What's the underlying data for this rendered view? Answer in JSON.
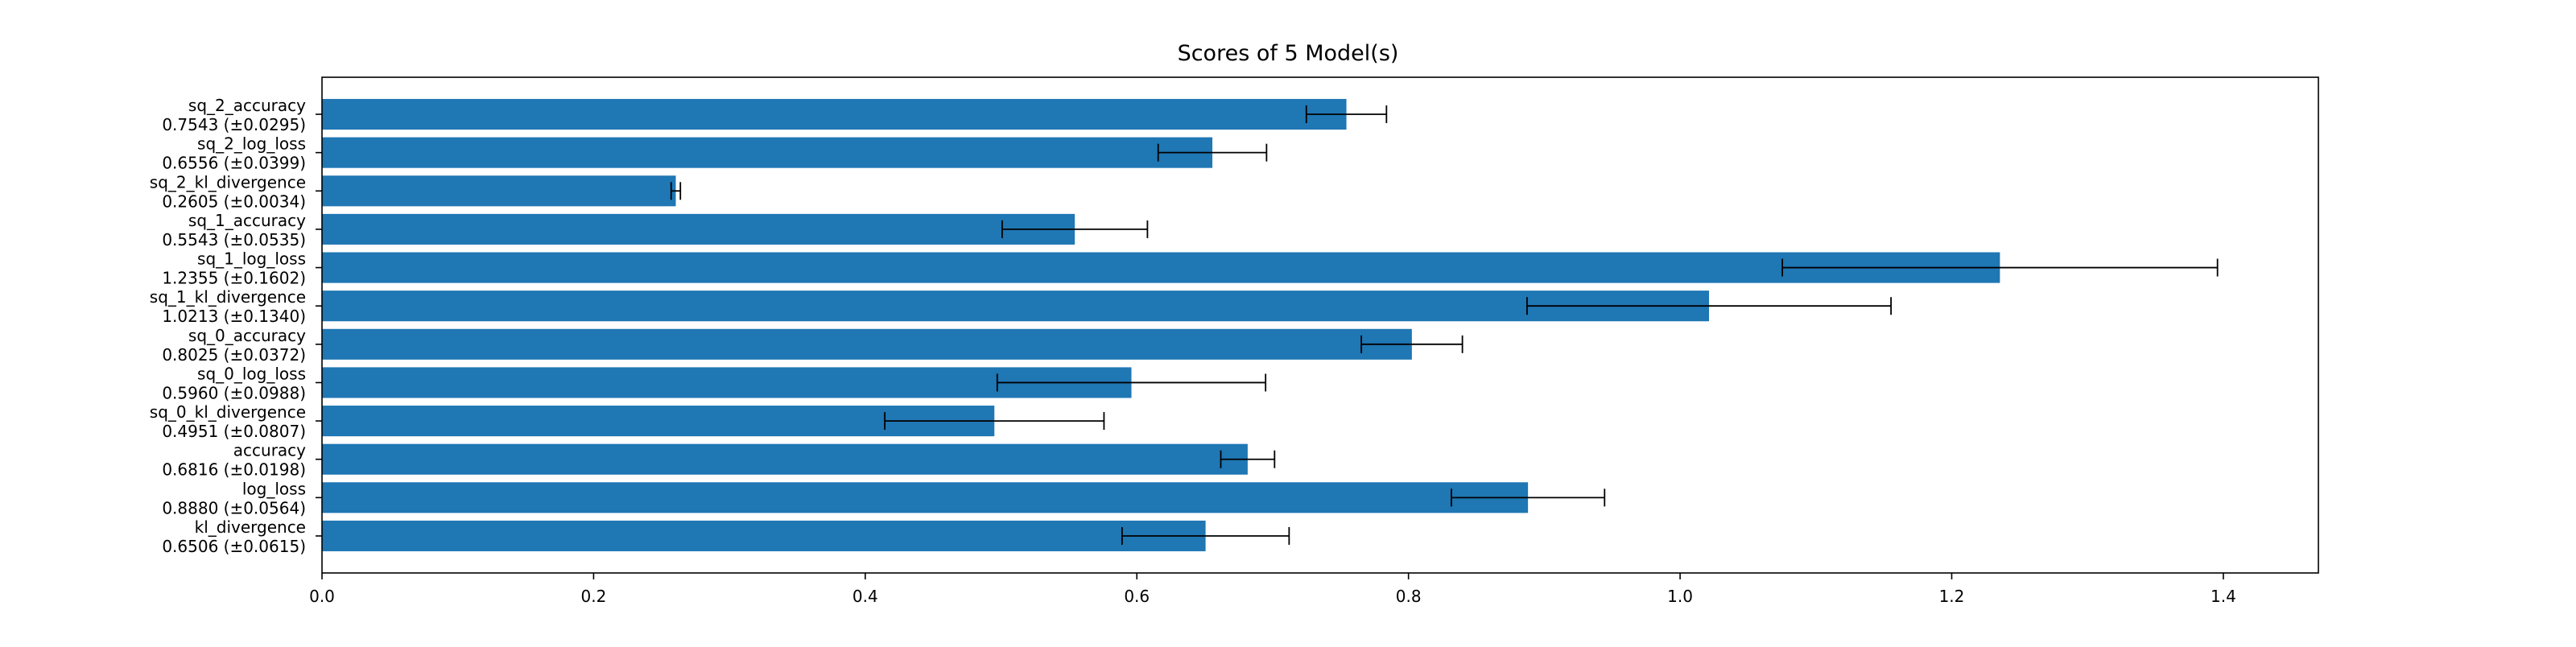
{
  "chart_data": {
    "type": "bar",
    "orientation": "horizontal",
    "title": "Scores of 5 Model(s)",
    "xlabel": "",
    "ylabel": "",
    "xlim": [
      0,
      1.47
    ],
    "x_ticks": [
      0.0,
      0.2,
      0.4,
      0.6,
      0.8,
      1.0,
      1.2,
      1.4
    ],
    "x_tick_labels": [
      "0.0",
      "0.2",
      "0.4",
      "0.6",
      "0.8",
      "1.0",
      "1.2",
      "1.4"
    ],
    "grid": false,
    "legend": "none",
    "bar_color": "#1f77b4",
    "error_bar_color": "#000000",
    "categories": [
      {
        "name": "sq_2_accuracy",
        "label": "0.7543 (±0.0295)",
        "value": 0.7543,
        "error": 0.0295
      },
      {
        "name": "sq_2_log_loss",
        "label": "0.6556 (±0.0399)",
        "value": 0.6556,
        "error": 0.0399
      },
      {
        "name": "sq_2_kl_divergence",
        "label": "0.2605 (±0.0034)",
        "value": 0.2605,
        "error": 0.0034
      },
      {
        "name": "sq_1_accuracy",
        "label": "0.5543 (±0.0535)",
        "value": 0.5543,
        "error": 0.0535
      },
      {
        "name": "sq_1_log_loss",
        "label": "1.2355 (±0.1602)",
        "value": 1.2355,
        "error": 0.1602
      },
      {
        "name": "sq_1_kl_divergence",
        "label": "1.0213 (±0.1340)",
        "value": 1.0213,
        "error": 0.134
      },
      {
        "name": "sq_0_accuracy",
        "label": "0.8025 (±0.0372)",
        "value": 0.8025,
        "error": 0.0372
      },
      {
        "name": "sq_0_log_loss",
        "label": "0.5960 (±0.0988)",
        "value": 0.596,
        "error": 0.0988
      },
      {
        "name": "sq_0_kl_divergence",
        "label": "0.4951 (±0.0807)",
        "value": 0.4951,
        "error": 0.0807
      },
      {
        "name": "accuracy",
        "label": "0.6816 (±0.0198)",
        "value": 0.6816,
        "error": 0.0198
      },
      {
        "name": "log_loss",
        "label": "0.8880 (±0.0564)",
        "value": 0.888,
        "error": 0.0564
      },
      {
        "name": "kl_divergence",
        "label": "0.6506 (±0.0615)",
        "value": 0.6506,
        "error": 0.0615
      }
    ]
  }
}
